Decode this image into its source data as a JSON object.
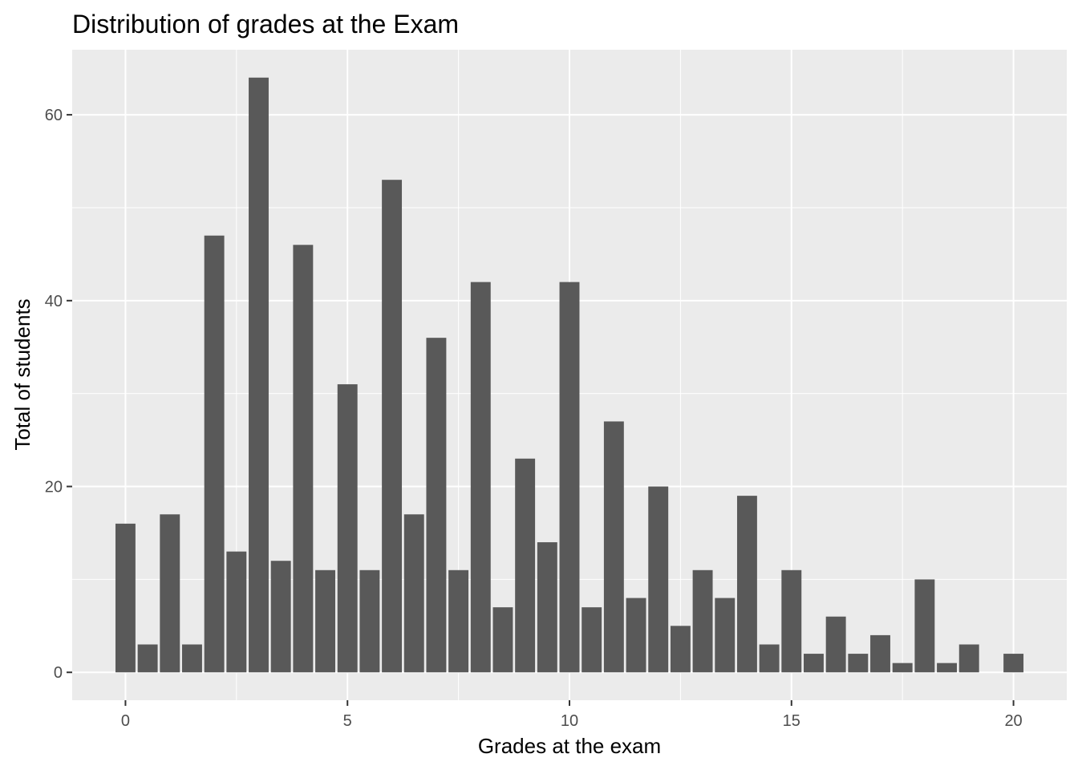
{
  "chart_data": {
    "type": "bar",
    "title": "Distribution of grades at the Exam",
    "xlabel": "Grades at the exam",
    "ylabel": "Total of students",
    "x": [
      0,
      0.5,
      1,
      1.5,
      2,
      2.5,
      3,
      3.5,
      4,
      4.5,
      5,
      5.5,
      6,
      6.5,
      7,
      7.5,
      8,
      8.5,
      9,
      9.5,
      10,
      10.5,
      11,
      11.5,
      12,
      12.5,
      13,
      13.5,
      14,
      14.5,
      15,
      15.5,
      16,
      16.5,
      17,
      17.5,
      18,
      18.5,
      19,
      20
    ],
    "values": [
      16,
      3,
      17,
      3,
      47,
      13,
      64,
      12,
      46,
      11,
      31,
      11,
      53,
      17,
      36,
      11,
      42,
      7,
      23,
      14,
      42,
      7,
      27,
      8,
      20,
      5,
      11,
      8,
      19,
      3,
      11,
      2,
      6,
      2,
      4,
      1,
      10,
      1,
      3,
      2
    ],
    "xlim": [
      -1.2,
      21.2
    ],
    "ylim": [
      -3,
      67
    ],
    "xticks": [
      0,
      5,
      10,
      15,
      20
    ],
    "yticks": [
      0,
      20,
      40,
      60
    ],
    "grid": true,
    "colors": {
      "panel": "#ebebeb",
      "grid": "#ffffff",
      "bar": "#595959",
      "tick_text": "#4d4d4d",
      "tick_mark": "#333333"
    }
  }
}
